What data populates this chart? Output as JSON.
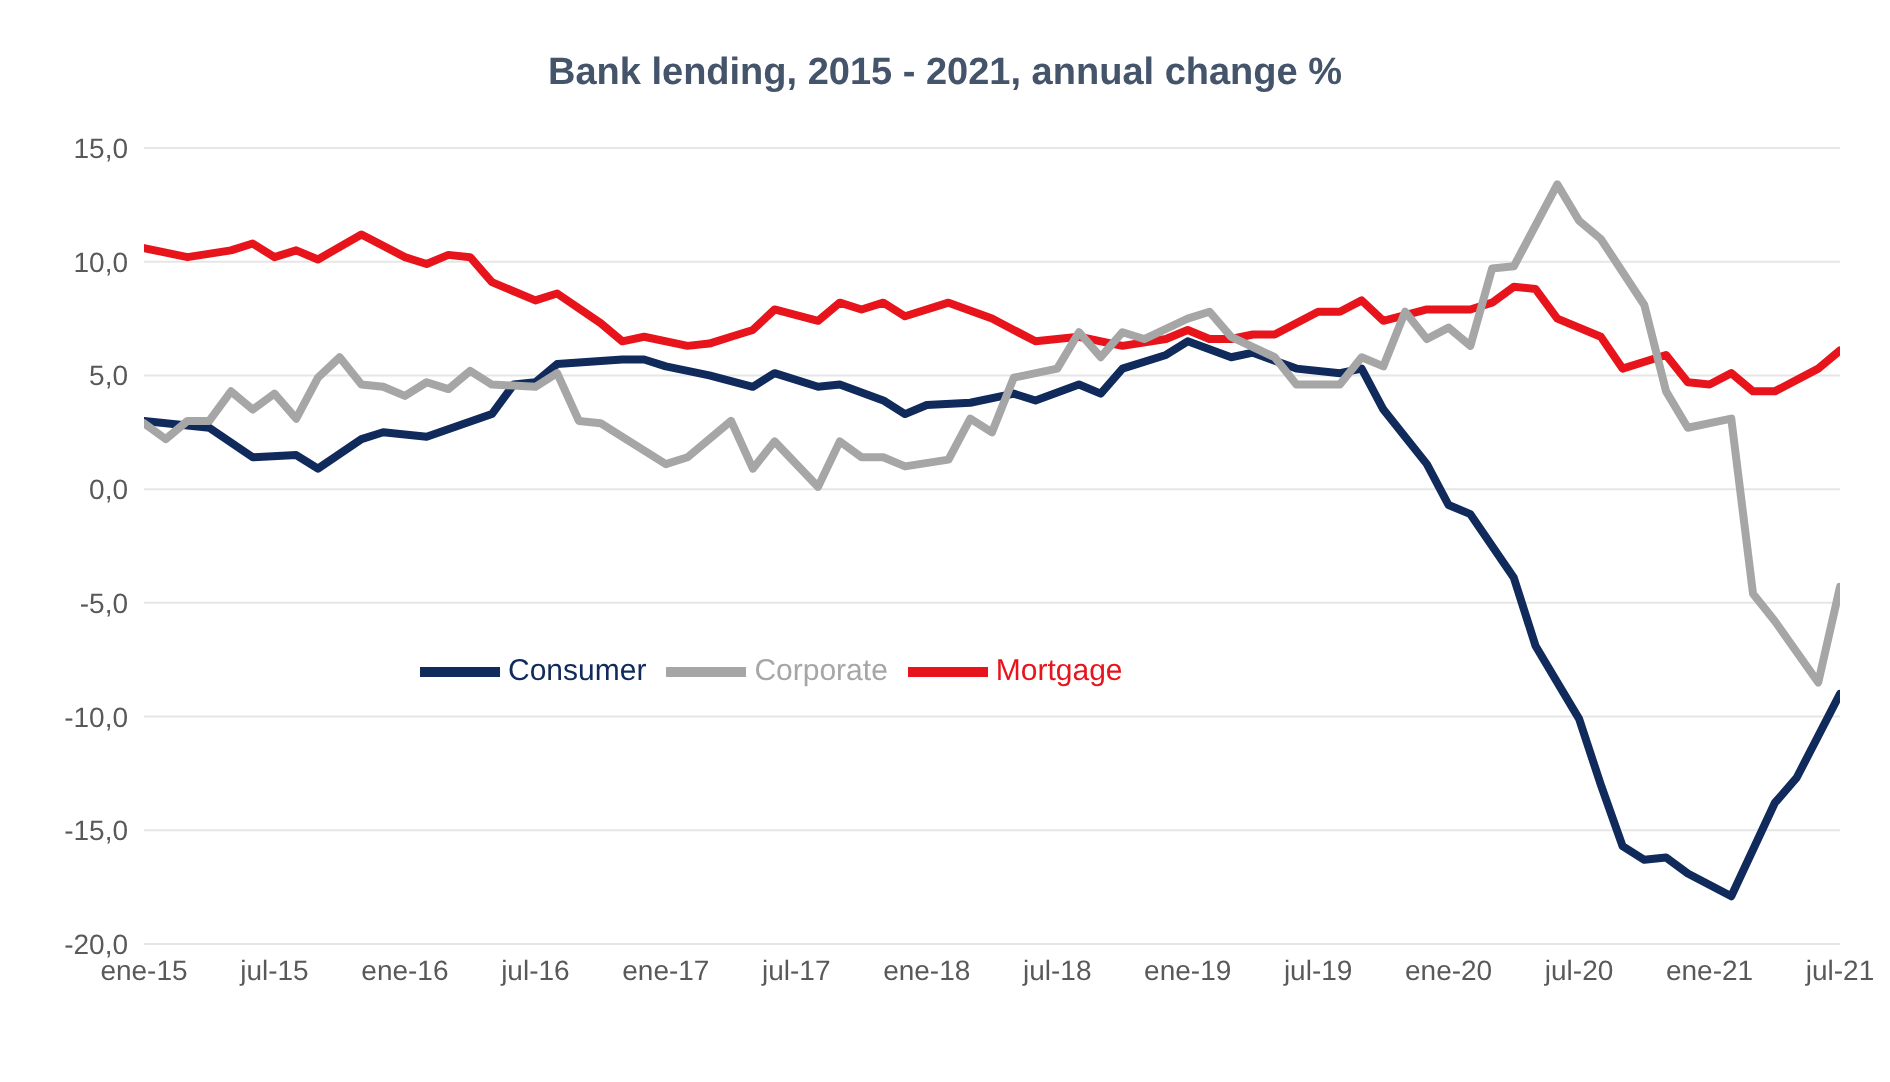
{
  "chart_data": {
    "type": "line",
    "title": "Bank lending, 2015 - 2021, annual change %",
    "series": [
      {
        "name": "Consumer",
        "color": "#102a5c",
        "x": [
          "2015-01",
          "2015-04",
          "2015-06",
          "2015-08",
          "2015-09",
          "2015-11",
          "2015-12",
          "2016-02",
          "2016-05",
          "2016-06",
          "2016-07",
          "2016-08",
          "2016-11",
          "2016-12",
          "2017-01",
          "2017-03",
          "2017-05",
          "2017-06",
          "2017-08",
          "2017-09",
          "2017-11",
          "2017-12",
          "2018-01",
          "2018-03",
          "2018-05",
          "2018-06",
          "2018-08",
          "2018-09",
          "2018-10",
          "2018-12",
          "2019-01",
          "2019-03",
          "2019-04",
          "2019-06",
          "2019-08",
          "2019-09",
          "2019-10",
          "2019-12",
          "2020-01",
          "2020-02",
          "2020-04",
          "2020-05",
          "2020-07",
          "2020-08",
          "2020-09",
          "2020-10",
          "2020-11",
          "2020-12",
          "2021-02",
          "2021-04",
          "2021-05",
          "2021-07"
        ],
        "values": [
          3.0,
          2.7,
          1.4,
          1.5,
          0.9,
          2.2,
          2.5,
          2.3,
          3.3,
          4.6,
          4.7,
          5.5,
          5.7,
          5.7,
          5.4,
          5.0,
          4.5,
          5.1,
          4.5,
          4.6,
          3.9,
          3.3,
          3.7,
          3.8,
          4.2,
          3.9,
          4.6,
          4.2,
          5.3,
          5.9,
          6.5,
          5.8,
          6.0,
          5.3,
          5.1,
          5.3,
          3.5,
          1.1,
          -0.7,
          -1.1,
          -3.9,
          -6.9,
          -10.1,
          -13.0,
          -15.7,
          -16.3,
          -16.2,
          -16.9,
          -17.9,
          -13.8,
          -12.7,
          -9.0
        ]
      },
      {
        "name": "Mortgage",
        "color": "#e8141c",
        "x": [
          "2015-01",
          "2015-03",
          "2015-05",
          "2015-06",
          "2015-07",
          "2015-08",
          "2015-09",
          "2015-11",
          "2016-01",
          "2016-02",
          "2016-03",
          "2016-04",
          "2016-05",
          "2016-07",
          "2016-08",
          "2016-10",
          "2016-11",
          "2016-12",
          "2017-02",
          "2017-03",
          "2017-04",
          "2017-05",
          "2017-06",
          "2017-08",
          "2017-09",
          "2017-10",
          "2017-11",
          "2017-12",
          "2018-02",
          "2018-04",
          "2018-05",
          "2018-06",
          "2018-08",
          "2018-10",
          "2018-12",
          "2019-01",
          "2019-02",
          "2019-03",
          "2019-04",
          "2019-05",
          "2019-07",
          "2019-08",
          "2019-09",
          "2019-10",
          "2019-12",
          "2020-02",
          "2020-03",
          "2020-04",
          "2020-05",
          "2020-06",
          "2020-08",
          "2020-09",
          "2020-11",
          "2020-12",
          "2021-01",
          "2021-02",
          "2021-03",
          "2021-04",
          "2021-06",
          "2021-07"
        ],
        "values": [
          10.6,
          10.2,
          10.5,
          10.8,
          10.2,
          10.5,
          10.1,
          11.2,
          10.2,
          9.9,
          10.3,
          10.2,
          9.1,
          8.3,
          8.6,
          7.3,
          6.5,
          6.7,
          6.3,
          6.4,
          6.7,
          7.0,
          7.9,
          7.4,
          8.2,
          7.9,
          8.2,
          7.6,
          8.2,
          7.5,
          7.0,
          6.5,
          6.7,
          6.3,
          6.6,
          7.0,
          6.6,
          6.6,
          6.8,
          6.8,
          7.8,
          7.8,
          8.3,
          7.4,
          7.9,
          7.9,
          8.2,
          8.9,
          8.8,
          7.5,
          6.7,
          5.3,
          5.9,
          4.7,
          4.6,
          5.1,
          4.3,
          4.3,
          5.3,
          6.1
        ]
      },
      {
        "name": "Corporate",
        "color": "#a6a6a6",
        "x": [
          "2015-01",
          "2015-02",
          "2015-03",
          "2015-04",
          "2015-05",
          "2015-06",
          "2015-07",
          "2015-08",
          "2015-09",
          "2015-10",
          "2015-11",
          "2015-12",
          "2016-01",
          "2016-02",
          "2016-03",
          "2016-04",
          "2016-05",
          "2016-07",
          "2016-08",
          "2016-09",
          "2016-10",
          "2016-11",
          "2017-01",
          "2017-02",
          "2017-04",
          "2017-05",
          "2017-06",
          "2017-08",
          "2017-09",
          "2017-10",
          "2017-11",
          "2017-12",
          "2018-02",
          "2018-03",
          "2018-04",
          "2018-05",
          "2018-07",
          "2018-08",
          "2018-09",
          "2018-10",
          "2018-11",
          "2019-01",
          "2019-02",
          "2019-03",
          "2019-05",
          "2019-06",
          "2019-08",
          "2019-09",
          "2019-10",
          "2019-11",
          "2019-12",
          "2020-01",
          "2020-02",
          "2020-03",
          "2020-04",
          "2020-06",
          "2020-07",
          "2020-08",
          "2020-10",
          "2020-11",
          "2020-12",
          "2021-02",
          "2021-03",
          "2021-04",
          "2021-06",
          "2021-07"
        ],
        "values": [
          2.9,
          2.2,
          3.0,
          3.0,
          4.3,
          3.5,
          4.2,
          3.1,
          4.9,
          5.8,
          4.6,
          4.5,
          4.1,
          4.7,
          4.4,
          5.2,
          4.6,
          4.5,
          5.1,
          3.0,
          2.9,
          2.3,
          1.1,
          1.4,
          3.0,
          0.9,
          2.1,
          0.1,
          2.1,
          1.4,
          1.4,
          1.0,
          1.3,
          3.1,
          2.5,
          4.9,
          5.3,
          6.9,
          5.8,
          6.9,
          6.6,
          7.5,
          7.8,
          6.7,
          5.8,
          4.6,
          4.6,
          5.8,
          5.4,
          7.8,
          6.6,
          7.1,
          6.3,
          9.7,
          9.8,
          13.4,
          11.8,
          11.0,
          8.1,
          4.3,
          2.7,
          3.1,
          -4.6,
          -5.8,
          -8.5,
          -4.3
        ]
      }
    ],
    "xlim": [
      "2015-01",
      "2021-07"
    ],
    "xticks": [
      {
        "value": "2015-01",
        "label": "ene-15"
      },
      {
        "value": "2015-07",
        "label": "jul-15"
      },
      {
        "value": "2016-01",
        "label": "ene-16"
      },
      {
        "value": "2016-07",
        "label": "jul-16"
      },
      {
        "value": "2017-01",
        "label": "ene-17"
      },
      {
        "value": "2017-07",
        "label": "jul-17"
      },
      {
        "value": "2018-01",
        "label": "ene-18"
      },
      {
        "value": "2018-07",
        "label": "jul-18"
      },
      {
        "value": "2019-01",
        "label": "ene-19"
      },
      {
        "value": "2019-07",
        "label": "jul-19"
      },
      {
        "value": "2020-01",
        "label": "ene-20"
      },
      {
        "value": "2020-07",
        "label": "jul-20"
      },
      {
        "value": "2021-01",
        "label": "ene-21"
      },
      {
        "value": "2021-07",
        "label": "jul-21"
      }
    ],
    "ylim": [
      -20,
      15
    ],
    "yticks": [
      {
        "value": -20,
        "label": "-20,0"
      },
      {
        "value": -15,
        "label": "-15,0"
      },
      {
        "value": -10,
        "label": "-10,0"
      },
      {
        "value": -5,
        "label": "-5,0"
      },
      {
        "value": 0,
        "label": "0,0"
      },
      {
        "value": 5,
        "label": "5,0"
      },
      {
        "value": 10,
        "label": "10,0"
      },
      {
        "value": 15,
        "label": "15,0"
      }
    ],
    "grid": "y",
    "legend": "center",
    "marker": "none",
    "line_style": "solid"
  }
}
